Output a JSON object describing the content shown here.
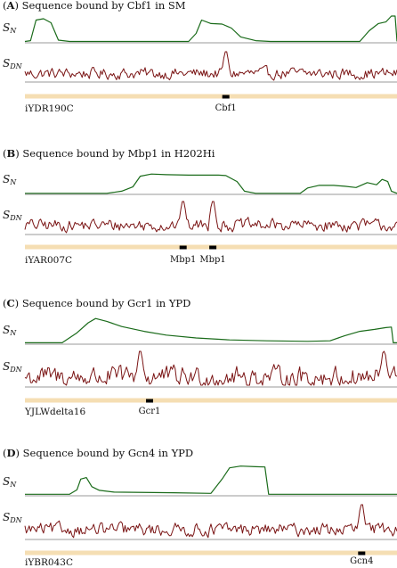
{
  "panels": [
    {
      "letter": "A",
      "title_rest": "Sequence bound by Cbf1 in SM",
      "sequence_name": "iYDR190C",
      "track_labels": {
        "s": "S",
        "s_sub": "N",
        "sd": "S",
        "sd_sub": "DN"
      },
      "motifs": [
        {
          "label": "Cbf1",
          "position": 0.54
        }
      ],
      "peaks": [
        0.54
      ],
      "n_profile": [
        [
          0,
          0.05
        ],
        [
          0.015,
          0.08
        ],
        [
          0.03,
          0.85
        ],
        [
          0.05,
          0.9
        ],
        [
          0.07,
          0.75
        ],
        [
          0.09,
          0.1
        ],
        [
          0.12,
          0.05
        ],
        [
          0.44,
          0.05
        ],
        [
          0.46,
          0.35
        ],
        [
          0.475,
          0.85
        ],
        [
          0.5,
          0.72
        ],
        [
          0.53,
          0.7
        ],
        [
          0.555,
          0.55
        ],
        [
          0.58,
          0.22
        ],
        [
          0.62,
          0.08
        ],
        [
          0.66,
          0.05
        ],
        [
          0.9,
          0.05
        ],
        [
          0.925,
          0.45
        ],
        [
          0.95,
          0.72
        ],
        [
          0.97,
          0.78
        ],
        [
          0.985,
          1.0
        ],
        [
          0.995,
          1.0
        ],
        [
          1,
          0.05
        ]
      ]
    },
    {
      "letter": "B",
      "title_rest": "Sequence bound by Mbp1 in H202Hi",
      "sequence_name": "iYAR007C",
      "track_labels": {
        "s": "S",
        "s_sub": "N",
        "sd": "S",
        "sd_sub": "DN"
      },
      "motifs": [
        {
          "label": "Mbp1",
          "position": 0.425
        },
        {
          "label": "Mbp1",
          "position": 0.505
        }
      ],
      "peaks": [
        0.425,
        0.505
      ],
      "n_profile": [
        [
          0,
          0.05
        ],
        [
          0.22,
          0.05
        ],
        [
          0.26,
          0.15
        ],
        [
          0.29,
          0.35
        ],
        [
          0.31,
          0.85
        ],
        [
          0.34,
          0.95
        ],
        [
          0.38,
          0.92
        ],
        [
          0.44,
          0.9
        ],
        [
          0.52,
          0.9
        ],
        [
          0.54,
          0.88
        ],
        [
          0.57,
          0.6
        ],
        [
          0.59,
          0.15
        ],
        [
          0.62,
          0.05
        ],
        [
          0.74,
          0.05
        ],
        [
          0.76,
          0.3
        ],
        [
          0.79,
          0.42
        ],
        [
          0.83,
          0.42
        ],
        [
          0.86,
          0.38
        ],
        [
          0.89,
          0.32
        ],
        [
          0.92,
          0.55
        ],
        [
          0.945,
          0.45
        ],
        [
          0.96,
          0.7
        ],
        [
          0.975,
          0.6
        ],
        [
          0.985,
          0.15
        ],
        [
          1,
          0.05
        ]
      ]
    },
    {
      "letter": "C",
      "title_rest": "Sequence bound by Gcr1 in YPD",
      "sequence_name": "YJLWdelta16",
      "track_labels": {
        "s": "S",
        "s_sub": "N",
        "sd": "S",
        "sd_sub": "DN"
      },
      "motifs": [
        {
          "label": "Gcr1",
          "position": 0.335
        }
      ],
      "peaks": [
        0.31,
        0.965
      ],
      "n_profile": [
        [
          0,
          0.05
        ],
        [
          0.1,
          0.05
        ],
        [
          0.14,
          0.4
        ],
        [
          0.17,
          0.75
        ],
        [
          0.19,
          0.9
        ],
        [
          0.22,
          0.8
        ],
        [
          0.26,
          0.62
        ],
        [
          0.32,
          0.45
        ],
        [
          0.38,
          0.32
        ],
        [
          0.46,
          0.22
        ],
        [
          0.55,
          0.15
        ],
        [
          0.65,
          0.12
        ],
        [
          0.76,
          0.1
        ],
        [
          0.82,
          0.12
        ],
        [
          0.86,
          0.3
        ],
        [
          0.9,
          0.45
        ],
        [
          0.94,
          0.52
        ],
        [
          0.97,
          0.58
        ],
        [
          0.985,
          0.6
        ],
        [
          0.99,
          0.05
        ],
        [
          1,
          0.05
        ]
      ]
    },
    {
      "letter": "D",
      "title_rest": "Sequence bound by Gcn4 in YPD",
      "sequence_name": "iYBR043C",
      "track_labels": {
        "s": "S",
        "s_sub": "N",
        "sd": "S",
        "sd_sub": "DN"
      },
      "motifs": [
        {
          "label": "Gcn4",
          "position": 0.905
        }
      ],
      "peaks": [
        0.905
      ],
      "n_profile": [
        [
          0,
          0.05
        ],
        [
          0.12,
          0.05
        ],
        [
          0.14,
          0.2
        ],
        [
          0.15,
          0.55
        ],
        [
          0.165,
          0.6
        ],
        [
          0.18,
          0.3
        ],
        [
          0.2,
          0.18
        ],
        [
          0.24,
          0.12
        ],
        [
          0.4,
          0.1
        ],
        [
          0.5,
          0.08
        ],
        [
          0.53,
          0.55
        ],
        [
          0.55,
          0.92
        ],
        [
          0.58,
          0.98
        ],
        [
          0.62,
          0.96
        ],
        [
          0.645,
          0.95
        ],
        [
          0.655,
          0.05
        ],
        [
          1,
          0.05
        ]
      ]
    }
  ],
  "colors": {
    "n_track": "#1a6b1a",
    "dn_track": "#7a1414",
    "baseline": "#9a9a9a",
    "sequence_bar": "#f5deb3",
    "motif_box": "#000000"
  }
}
